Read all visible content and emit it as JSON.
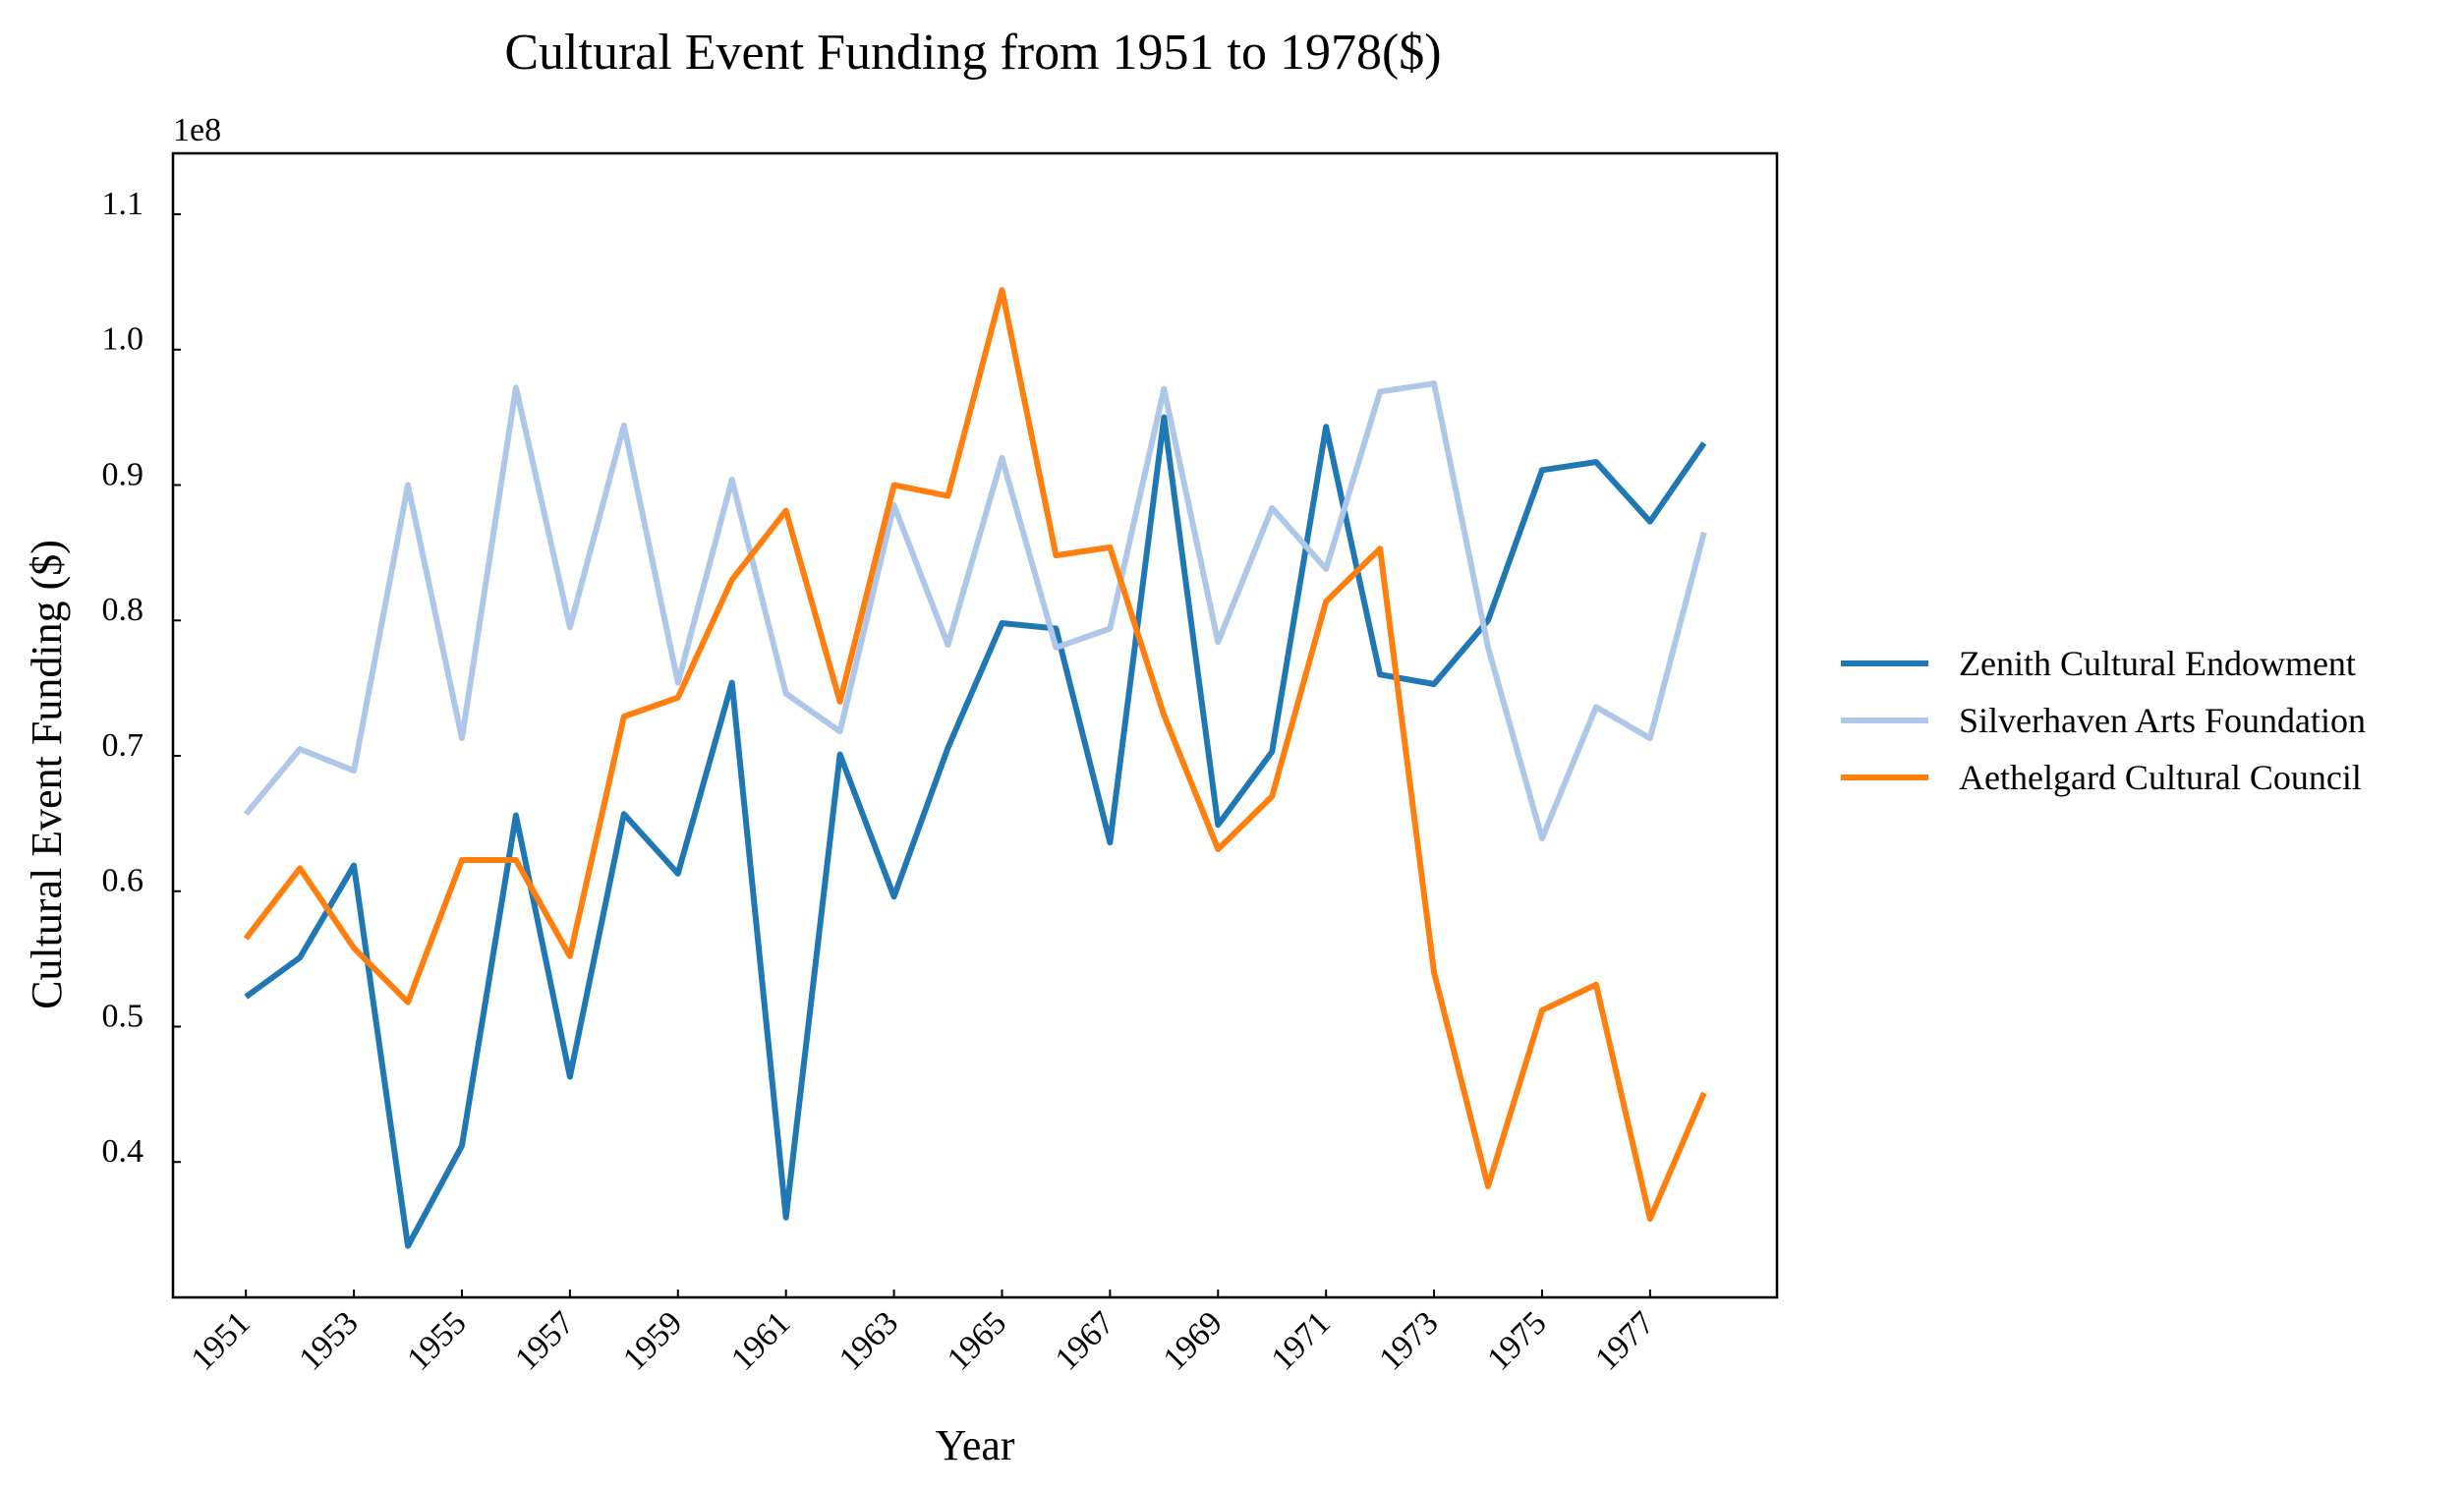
{
  "chart_data": {
    "type": "line",
    "title": "Cultural Event Funding from 1951 to 1978($)",
    "xlabel": "Year",
    "ylabel": "Cultural Event Funding ($)",
    "y_offset_label": "1e8",
    "xlim": [
      1949.65,
      1979.35
    ],
    "ylim": [
      30000000,
      114500000
    ],
    "x_ticks": [
      1951,
      1953,
      1955,
      1957,
      1959,
      1961,
      1963,
      1965,
      1967,
      1969,
      1971,
      1973,
      1975,
      1977
    ],
    "x_tick_labels": [
      "1951",
      "1953",
      "1955",
      "1957",
      "1959",
      "1961",
      "1963",
      "1965",
      "1967",
      "1969",
      "1971",
      "1973",
      "1975",
      "1977"
    ],
    "y_ticks": [
      40000000,
      50000000,
      60000000,
      70000000,
      80000000,
      90000000,
      100000000,
      110000000
    ],
    "y_tick_labels": [
      "0.4",
      "0.5",
      "0.6",
      "0.7",
      "0.8",
      "0.9",
      "1.0",
      "1.1"
    ],
    "grid": false,
    "legend_position": "right",
    "x": [
      1951,
      1952,
      1953,
      1954,
      1955,
      1956,
      1957,
      1958,
      1959,
      1960,
      1961,
      1962,
      1963,
      1964,
      1965,
      1966,
      1967,
      1968,
      1969,
      1970,
      1971,
      1972,
      1973,
      1974,
      1975,
      1976,
      1977,
      1978
    ],
    "series": [
      {
        "name": "Zenith Cultural Endowment",
        "color": "#1f77b4",
        "values": [
          52200000,
          55100000,
          61900000,
          33800000,
          41200000,
          65600000,
          46300000,
          65700000,
          61300000,
          75400000,
          35900000,
          70100000,
          59600000,
          70600000,
          79800000,
          79400000,
          63600000,
          95000000,
          64900000,
          70300000,
          94300000,
          76000000,
          75300000,
          80000000,
          91100000,
          91700000,
          87300000,
          93100000
        ]
      },
      {
        "name": "Silverhaven Arts Foundation",
        "color": "#aec7e8",
        "values": [
          65700000,
          70500000,
          68900000,
          90000000,
          71300000,
          97200000,
          79500000,
          94400000,
          75400000,
          90400000,
          74600000,
          71800000,
          88500000,
          78200000,
          92000000,
          78000000,
          79400000,
          97100000,
          78400000,
          88300000,
          83800000,
          96900000,
          97500000,
          78000000,
          63900000,
          73600000,
          71300000,
          86500000
        ]
      },
      {
        "name": "Aethelgard Cultural Council",
        "color": "#ff7f0e",
        "values": [
          56500000,
          61700000,
          55800000,
          51800000,
          62300000,
          62300000,
          55200000,
          72900000,
          74300000,
          83000000,
          88100000,
          74000000,
          90000000,
          89200000,
          104400000,
          84800000,
          85400000,
          73000000,
          63100000,
          67000000,
          81400000,
          85300000,
          54000000,
          38200000,
          51200000,
          53100000,
          35800000,
          45100000
        ]
      }
    ]
  }
}
